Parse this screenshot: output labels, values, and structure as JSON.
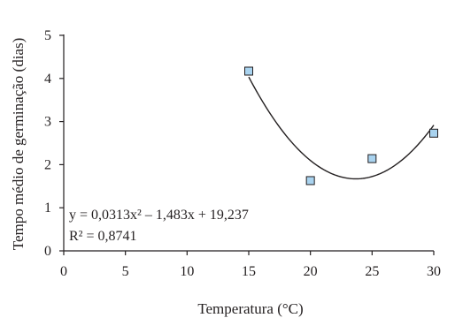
{
  "chart_data": {
    "type": "scatter",
    "title": "",
    "xlabel": "Temperatura (°C)",
    "ylabel": "Tempo médio de germinação (dias)",
    "xlim": [
      0,
      30
    ],
    "ylim": [
      0,
      5
    ],
    "x_ticks": [
      0,
      5,
      10,
      15,
      20,
      25,
      30
    ],
    "y_ticks": [
      0,
      1,
      2,
      3,
      4,
      5
    ],
    "grid": false,
    "legend": "none",
    "series": [
      {
        "x": [
          15,
          20,
          25,
          30
        ],
        "y": [
          4.17,
          1.63,
          2.14,
          2.73
        ],
        "marker": "square",
        "color": "#a9d3ef"
      }
    ],
    "trendline": {
      "type": "polynomial",
      "coefficients": [
        0.0313,
        -1.483,
        19.237
      ],
      "x_range": [
        15,
        30
      ],
      "color": "#231f20"
    },
    "annotations": {
      "equation": "y = 0,0313x² – 1,483x + 19,237",
      "r2": "R² = 0,8741"
    }
  }
}
